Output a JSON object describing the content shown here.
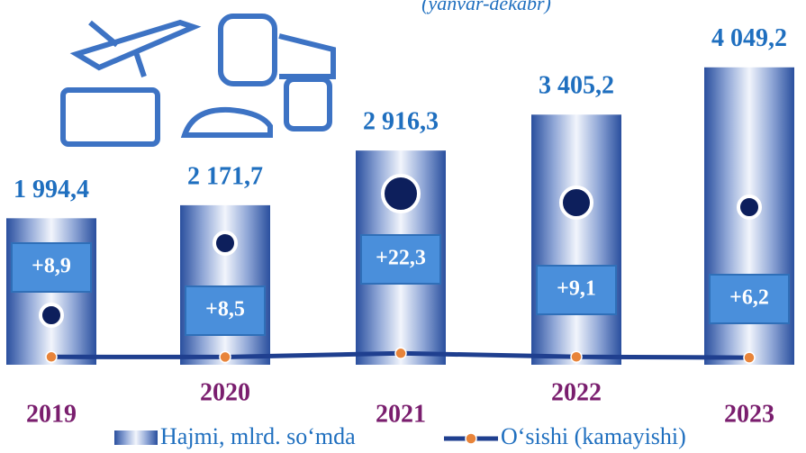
{
  "chart_data": {
    "type": "bar",
    "subtitle": "(yanvar-dekabr)",
    "categories": [
      "2019",
      "2020",
      "2021",
      "2022",
      "2023"
    ],
    "series": [
      {
        "name": "Hajmi, mlrd. so‘mda",
        "type": "bar",
        "color": "#2a4f9e",
        "values": [
          1994.4,
          2171.7,
          2916.3,
          3405.2,
          4049.2
        ],
        "value_labels": [
          "1 994,4",
          "2 171,7",
          "2 916,3",
          "3 405,2",
          "4 049,2"
        ]
      },
      {
        "name": "O‘sishi (kamayishi)",
        "type": "line",
        "axis": "y2",
        "color": "#1f3f8f",
        "marker_color": "#e8843a",
        "values": [
          8.9,
          8.5,
          22.3,
          9.1,
          6.2
        ],
        "value_labels": [
          "+8,9",
          "+8,5",
          "+22,3",
          "+9,1",
          "+6,2"
        ]
      }
    ],
    "ylim": [
      0,
      4500
    ],
    "y2lim": [
      -20,
      1200
    ],
    "legend": "bottom"
  }
}
